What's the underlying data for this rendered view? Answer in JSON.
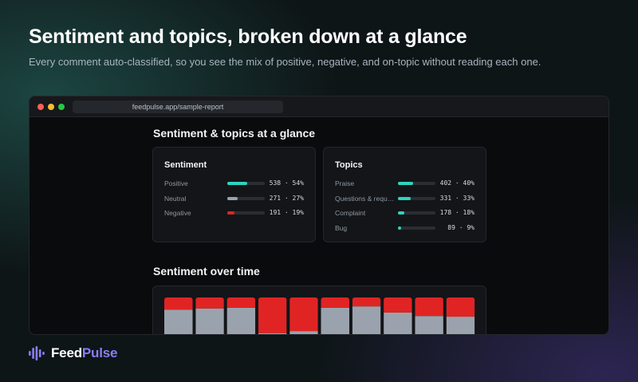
{
  "hero": {
    "title": "Sentiment and topics, broken down at a glance",
    "subtitle": "Every comment auto-classified, so you see the mix of positive, negative, and on-topic without reading each one."
  },
  "browser": {
    "url": "feedpulse.app/sample-report"
  },
  "report": {
    "glance_title": "Sentiment & topics at a glance",
    "sentiment": {
      "title": "Sentiment",
      "items": [
        {
          "label": "Positive",
          "count": "538",
          "percent": "54%",
          "fraction": 0.54,
          "color": "#2dd4bf"
        },
        {
          "label": "Neutral",
          "count": "271",
          "percent": "27%",
          "fraction": 0.27,
          "color": "#9aa3ad"
        },
        {
          "label": "Negative",
          "count": "191",
          "percent": "19%",
          "fraction": 0.19,
          "color": "#e02424"
        }
      ]
    },
    "topics": {
      "title": "Topics",
      "items": [
        {
          "label": "Praise",
          "count": "402",
          "percent": "40%",
          "fraction": 0.4,
          "color": "#2dd4bf"
        },
        {
          "label": "Questions & requests",
          "display_label": "Questions & reque…",
          "count": "331",
          "percent": "33%",
          "fraction": 0.33,
          "color": "#2dd4bf"
        },
        {
          "label": "Complaint",
          "count": "178",
          "percent": "18%",
          "fraction": 0.18,
          "color": "#2dd4bf"
        },
        {
          "label": "Bug",
          "count": "89",
          "percent": "9%",
          "fraction": 0.09,
          "color": "#2dd4bf"
        }
      ]
    },
    "over_time_title": "Sentiment over time"
  },
  "chart_data": {
    "type": "bar",
    "stacked": true,
    "normalized": true,
    "categories": [
      "",
      "",
      "",
      "",
      "",
      "",
      "",
      "",
      "",
      ""
    ],
    "series": [
      {
        "key": "positive",
        "color": "#2dd4bf",
        "values": [
          0.36,
          0.4,
          0.39,
          0.12,
          0.14,
          0.43,
          0.46,
          0.34,
          0.27,
          0.24
        ]
      },
      {
        "key": "neutral",
        "color": "#9aa3ad",
        "values": [
          0.46,
          0.44,
          0.46,
          0.36,
          0.37,
          0.42,
          0.41,
          0.44,
          0.46,
          0.48
        ]
      },
      {
        "key": "negative",
        "color": "#e02424",
        "values": [
          0.18,
          0.16,
          0.15,
          0.52,
          0.49,
          0.15,
          0.13,
          0.22,
          0.27,
          0.28
        ]
      }
    ]
  },
  "brand": {
    "name_part1": "Feed",
    "name_part2": "Pulse",
    "accent": "#8b7cf6",
    "icon": "waveform-icon"
  }
}
